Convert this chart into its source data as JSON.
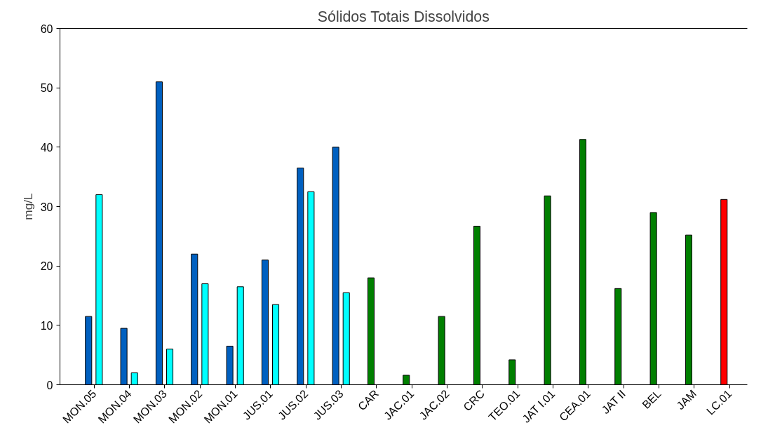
{
  "chart_data": {
    "type": "bar",
    "title": "Sólidos Totais Dissolvidos",
    "ylabel": "mg/L",
    "categories": [
      "MON.05",
      "MON.04",
      "MON.03",
      "MON.02",
      "MON.01",
      "JUS.01",
      "JUS.02",
      "JUS.03",
      "CAR",
      "JAC.01",
      "JAC.02",
      "CRC",
      "TEO.01",
      "JAT I.01",
      "CEA.01",
      "JAT II",
      "BEL",
      "JAM",
      "LC.01"
    ],
    "series": [
      {
        "colors": [
          "#0060c0",
          "#0060c0",
          "#0060c0",
          "#0060c0",
          "#0060c0",
          "#0060c0",
          "#0060c0",
          "#0060c0",
          "#007f00",
          "#007f00",
          "#007f00",
          "#007f00",
          "#007f00",
          "#007f00",
          "#007f00",
          "#007f00",
          "#007f00",
          "#007f00",
          "#ff0000"
        ],
        "values": [
          11.5,
          9.5,
          51,
          22,
          6.5,
          21,
          36.5,
          40,
          18,
          1.6,
          11.5,
          26.7,
          4.2,
          31.8,
          41.3,
          16.2,
          29,
          25.2,
          31.2
        ]
      },
      {
        "color": "#00ffff",
        "values": [
          32,
          2,
          6,
          17,
          16.5,
          13.5,
          32.5,
          15.5,
          null,
          null,
          null,
          null,
          null,
          null,
          null,
          null,
          null,
          null,
          null
        ]
      }
    ],
    "ylim": [
      0,
      60
    ],
    "yticks": [
      0,
      10,
      20,
      30,
      40,
      50,
      60
    ],
    "grid": false
  }
}
